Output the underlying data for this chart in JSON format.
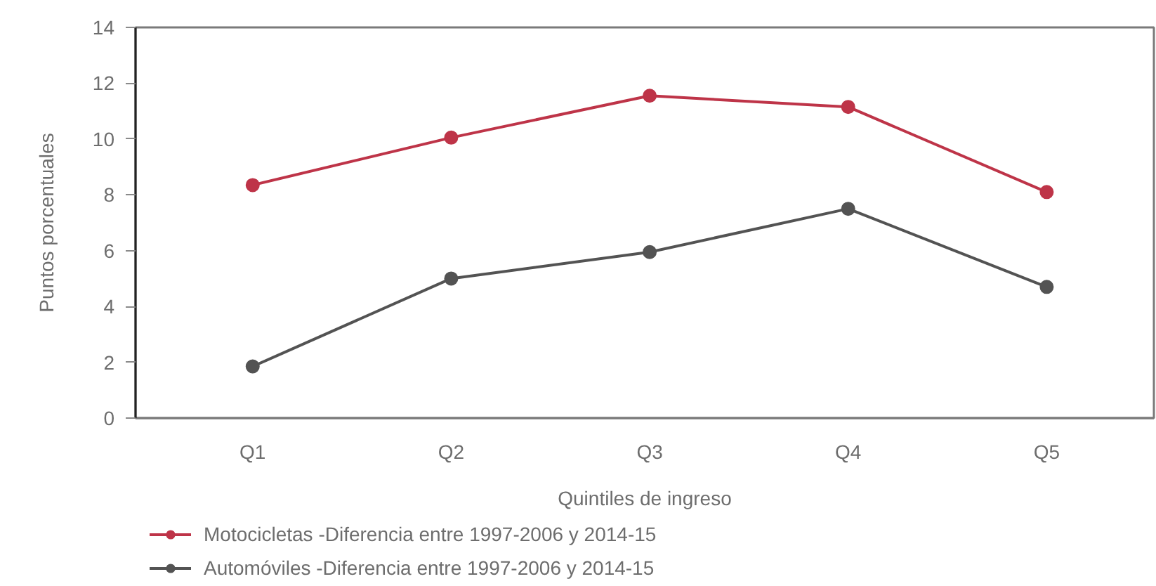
{
  "chart_data": {
    "type": "line",
    "xlabel": "Quintiles de ingreso",
    "ylabel": "Puntos porcentuales",
    "categories": [
      "Q1",
      "Q2",
      "Q3",
      "Q4",
      "Q5"
    ],
    "series": [
      {
        "name": "Motocicletas -Diferencia entre 1997-2006 y 2014-15",
        "color": "#be3448",
        "values": [
          8.35,
          10.05,
          11.55,
          11.15,
          8.1
        ]
      },
      {
        "name": "Automóviles -Diferencia entre 1997-2006 y 2014-15",
        "color": "#535353",
        "values": [
          1.85,
          5.0,
          5.95,
          7.5,
          4.7
        ]
      }
    ],
    "ylim": [
      0,
      14
    ],
    "yticks": [
      0,
      2,
      4,
      6,
      8,
      10,
      12,
      14
    ],
    "grid": false,
    "legend": "bottom",
    "marker": "circle",
    "line_style": "solid"
  }
}
